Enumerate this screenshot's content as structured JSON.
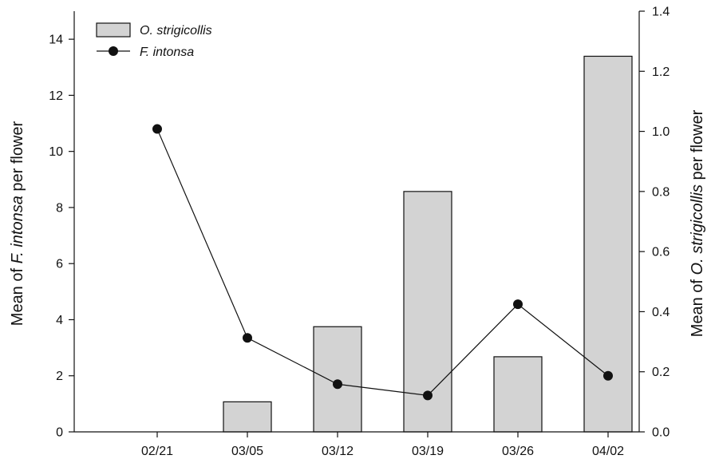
{
  "chart_data": {
    "type": "bar",
    "categories": [
      "02/21",
      "03/05",
      "03/12",
      "03/19",
      "03/26",
      "04/02"
    ],
    "series": [
      {
        "name": "O. strigicollis",
        "type": "bar",
        "axis": "right",
        "color": "#d3d3d3",
        "values": [
          0,
          0.1,
          0.35,
          0.8,
          0.25,
          1.25
        ]
      },
      {
        "name": "F. intonsa",
        "type": "line",
        "axis": "left",
        "color": "#111111",
        "values": [
          10.8,
          3.35,
          1.7,
          1.3,
          4.55,
          2.0
        ]
      }
    ],
    "y_left": {
      "label_pre": "Mean of ",
      "label_ital": "F. intonsa",
      "label_post": " per flower",
      "range": [
        0,
        15
      ],
      "ticks": [
        0,
        2,
        4,
        6,
        8,
        10,
        12,
        14
      ]
    },
    "y_right": {
      "label_pre": "Mean of ",
      "label_ital": "O. strigicollis",
      "label_post": " per flower",
      "range": [
        0,
        1.4
      ],
      "ticks": [
        "0.0",
        "0.2",
        "0.4",
        "0.6",
        "0.8",
        "1.0",
        "1.2",
        "1.4"
      ]
    },
    "legend": {
      "position": "top-left"
    },
    "grid": false
  }
}
